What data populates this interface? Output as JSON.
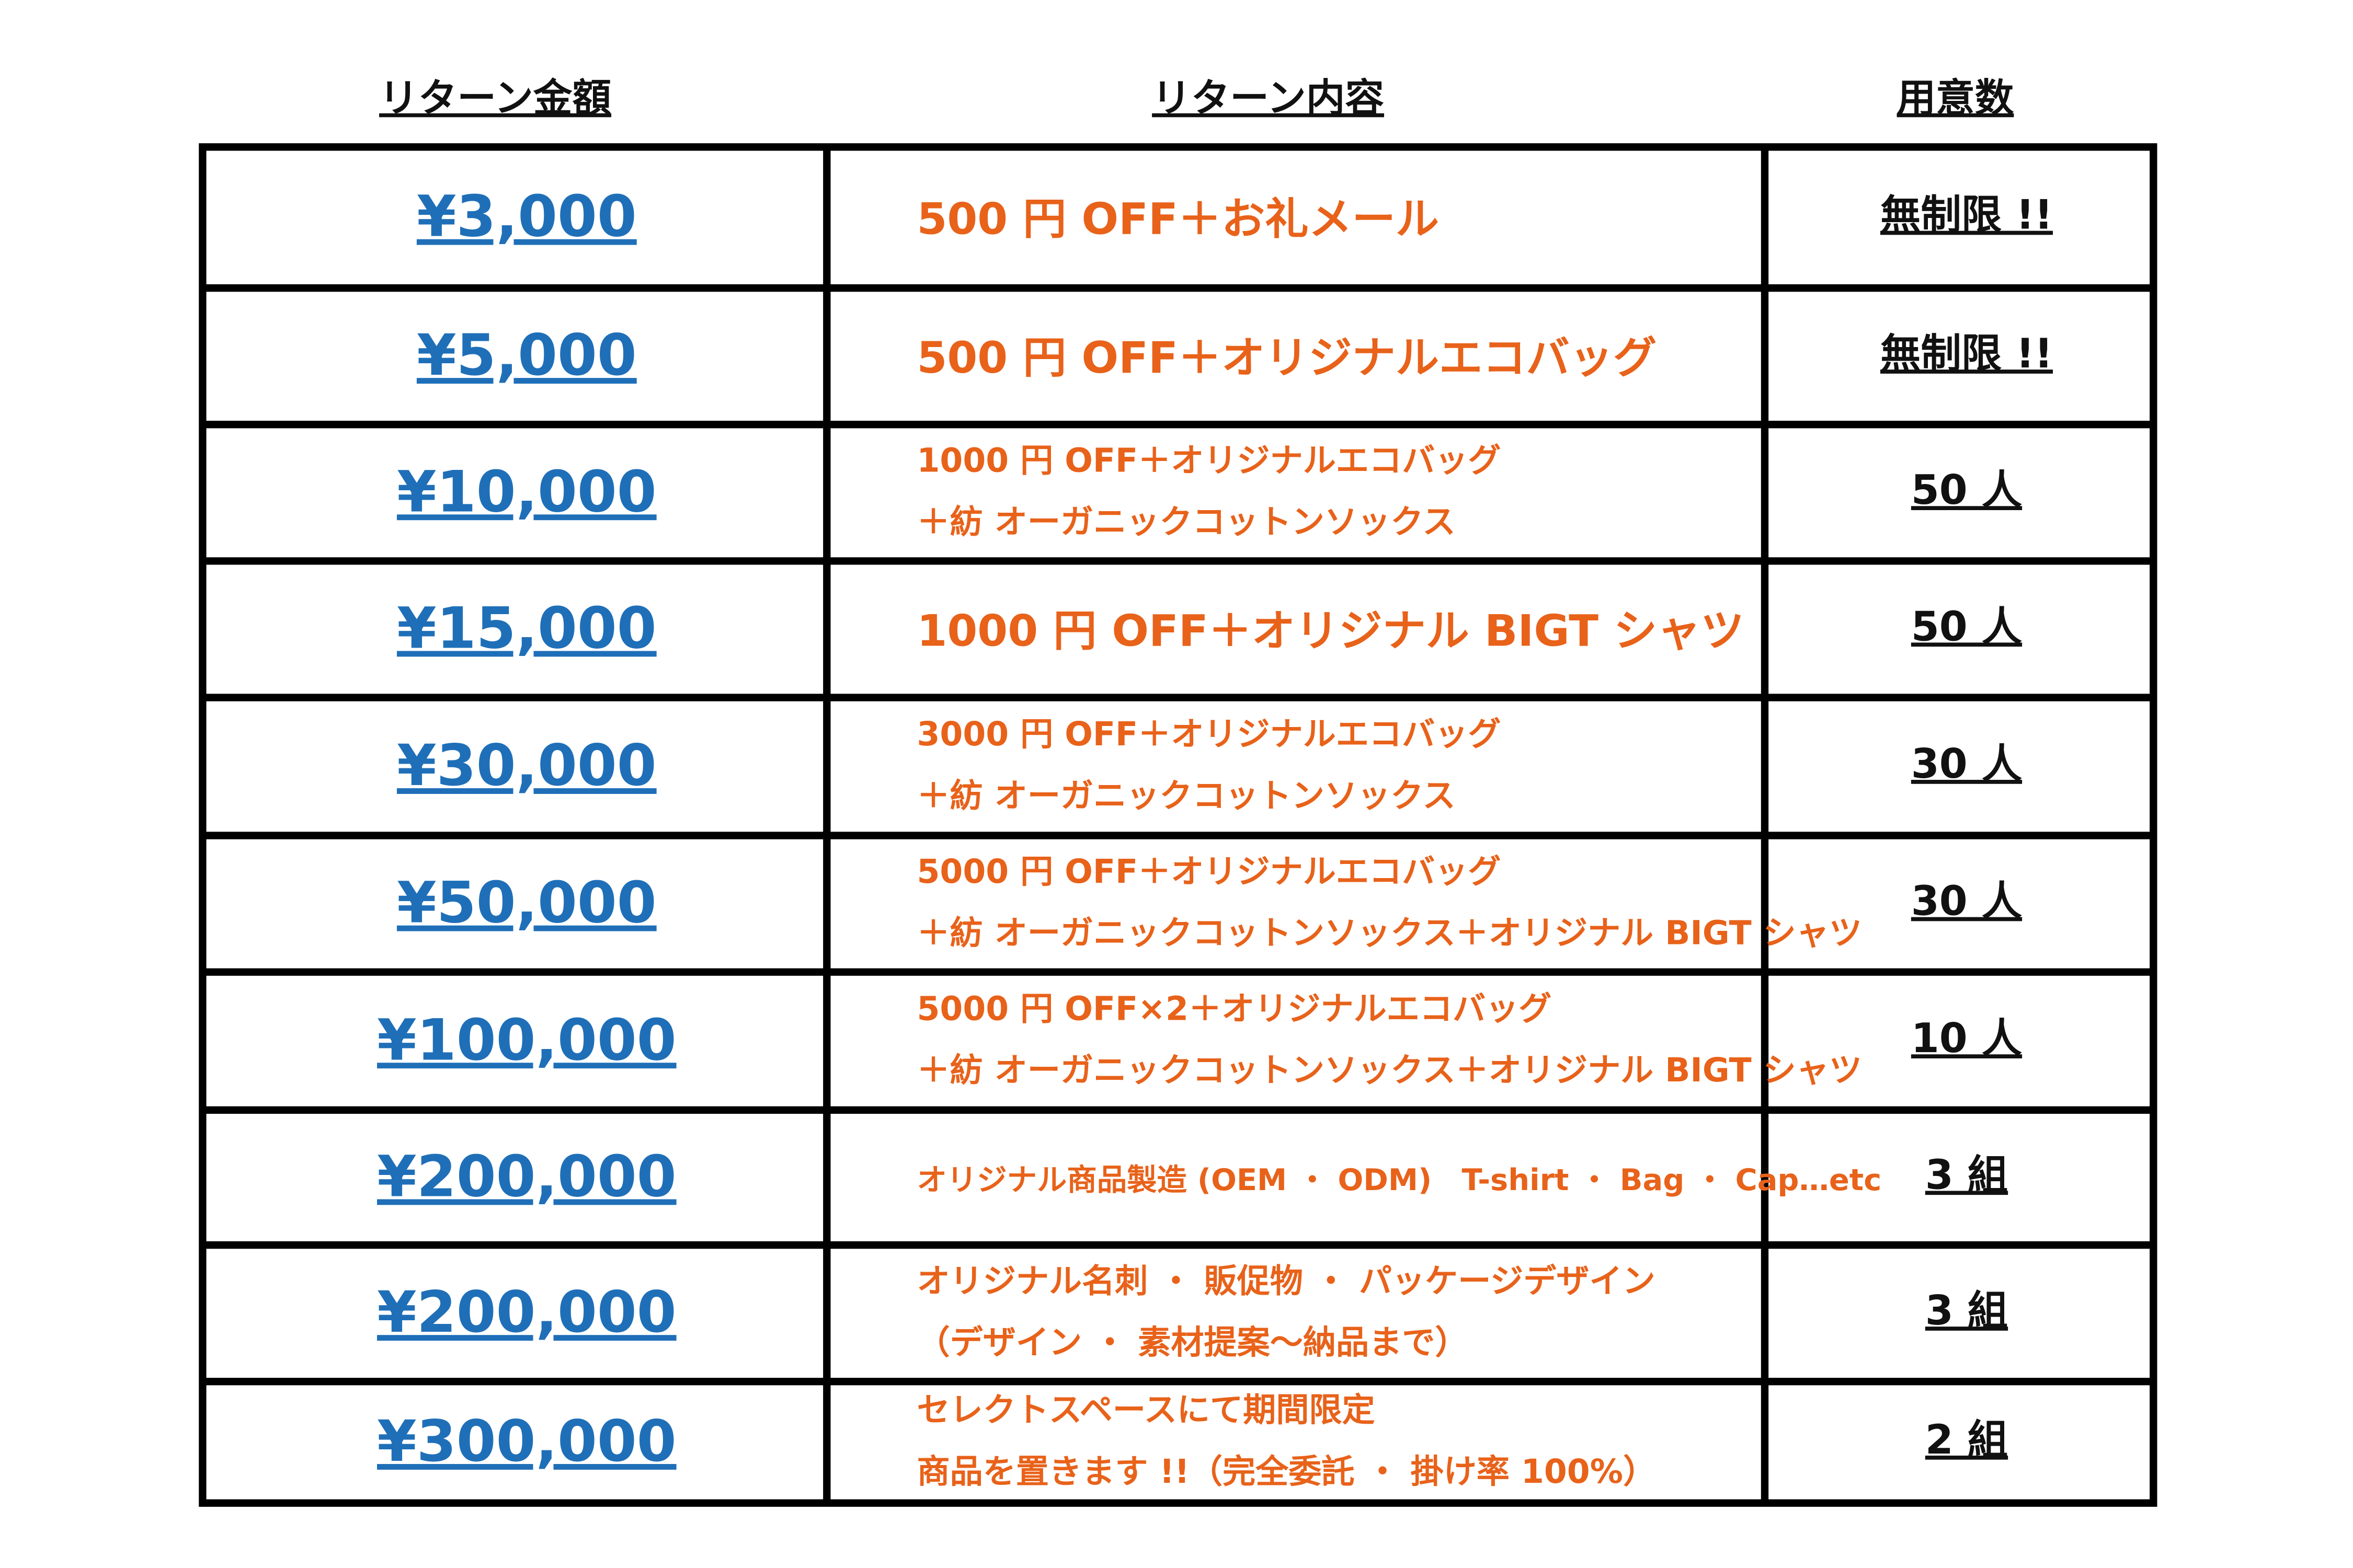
{
  "table": {
    "headers": [
      "リターン金額",
      "リターン内容",
      "用意数"
    ],
    "rows": [
      {
        "amount": "¥3,000",
        "content": [
          "500 円 OFF＋お礼メール"
        ],
        "quantity": "無制限 !!"
      },
      {
        "amount": "¥5,000",
        "content": [
          "500 円 OFF＋オリジナルエコバッグ"
        ],
        "quantity": "無制限 !!"
      },
      {
        "amount": "¥10,000",
        "content": [
          "1000 円 OFF＋オリジナルエコバッグ",
          "＋紡  オーガニックコットンソックス"
        ],
        "quantity": "50 人"
      },
      {
        "amount": "¥15,000",
        "content": [
          "1000 円 OFF＋オリジナル BIGT シャツ"
        ],
        "quantity": "50 人"
      },
      {
        "amount": "¥30,000",
        "content": [
          "3000 円 OFF＋オリジナルエコバッグ",
          "＋紡  オーガニックコットンソックス"
        ],
        "quantity": "30 人"
      },
      {
        "amount": "¥50,000",
        "content": [
          "5000 円 OFF＋オリジナルエコバッグ",
          "＋紡  オーガニックコットンソックス＋オリジナル BIGT シャツ"
        ],
        "quantity": "30 人"
      },
      {
        "amount": "¥100,000",
        "content": [
          "5000 円 OFF×2＋オリジナルエコバッグ",
          "＋紡  オーガニックコットンソックス＋オリジナル BIGT シャツ"
        ],
        "quantity": "10 人"
      },
      {
        "amount": "¥200,000",
        "content": [
          "オリジナル商品製造 (OEM ・ ODM)　T-shirt ・ Bag ・ Cap…etc"
        ],
        "quantity": "3 組"
      },
      {
        "amount": "¥200,000",
        "content": [
          "オリジナル名刺 ・ 販促物 ・ パッケージデザイン",
          "（デザイン ・ 素材提案～納品まで）"
        ],
        "quantity": "3 組"
      },
      {
        "amount": "¥300,000",
        "content": [
          "セレクトスペースにて期間限定",
          "商品を置きます !!（完全委託 ・ 掛け率 100%）"
        ],
        "quantity": "2 組"
      }
    ]
  }
}
